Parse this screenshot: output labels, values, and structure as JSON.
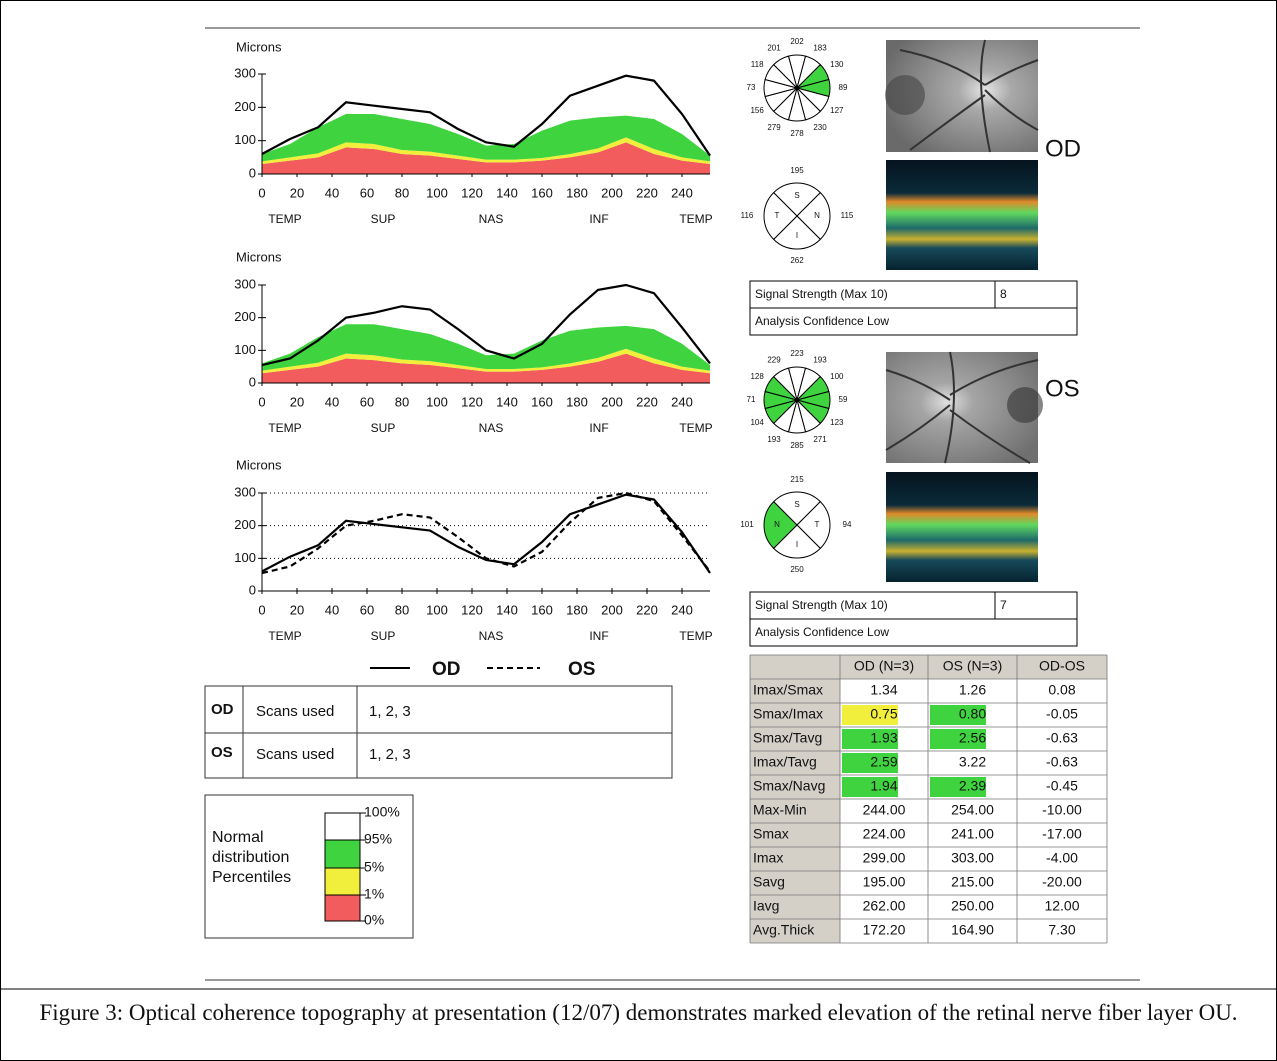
{
  "chart_data": [
    {
      "type": "area",
      "y_label": "Microns",
      "x": [
        0,
        16,
        32,
        48,
        64,
        80,
        96,
        112,
        128,
        144,
        160,
        176,
        192,
        208,
        224,
        240,
        256
      ],
      "xlim": [
        0,
        256
      ],
      "xticks": [
        0,
        20,
        40,
        60,
        80,
        100,
        120,
        140,
        160,
        180,
        200,
        220,
        240
      ],
      "ylim": [
        0,
        300
      ],
      "yticks": [
        0,
        100,
        200,
        300
      ],
      "regions": [
        "TEMP",
        "SUP",
        "NAS",
        "INF",
        "TEMP"
      ],
      "bands": [
        {
          "color": "#f25c5c",
          "values": [
            30,
            40,
            50,
            80,
            75,
            60,
            55,
            45,
            35,
            35,
            40,
            50,
            65,
            95,
            60,
            40,
            30
          ]
        },
        {
          "color": "#f2ee3c",
          "values": [
            8,
            10,
            12,
            15,
            15,
            12,
            12,
            10,
            8,
            8,
            8,
            10,
            12,
            15,
            15,
            10,
            8
          ]
        },
        {
          "color": "#3fd43f",
          "values": [
            22,
            40,
            78,
            85,
            90,
            93,
            83,
            65,
            42,
            47,
            82,
            100,
            93,
            65,
            90,
            70,
            17
          ]
        }
      ],
      "series": [
        {
          "color": "#000000",
          "dash": "solid",
          "values": [
            60,
            105,
            140,
            215,
            205,
            195,
            185,
            135,
            95,
            82,
            150,
            235,
            265,
            295,
            280,
            180,
            55
          ]
        }
      ]
    },
    {
      "type": "area",
      "y_label": "Microns",
      "x": [
        0,
        16,
        32,
        48,
        64,
        80,
        96,
        112,
        128,
        144,
        160,
        176,
        192,
        208,
        224,
        240,
        256
      ],
      "xlim": [
        0,
        256
      ],
      "xticks": [
        0,
        20,
        40,
        60,
        80,
        100,
        120,
        140,
        160,
        180,
        200,
        220,
        240
      ],
      "ylim": [
        0,
        300
      ],
      "yticks": [
        0,
        100,
        200,
        300
      ],
      "regions": [
        "TEMP",
        "SUP",
        "NAS",
        "INF",
        "TEMP"
      ],
      "bands": [
        {
          "color": "#f25c5c",
          "values": [
            30,
            40,
            50,
            75,
            70,
            60,
            55,
            45,
            35,
            35,
            40,
            50,
            65,
            90,
            60,
            40,
            30
          ]
        },
        {
          "color": "#f2ee3c",
          "values": [
            8,
            10,
            12,
            15,
            15,
            12,
            12,
            10,
            8,
            8,
            8,
            10,
            12,
            15,
            15,
            10,
            8
          ]
        },
        {
          "color": "#3fd43f",
          "values": [
            22,
            40,
            78,
            90,
            95,
            93,
            83,
            65,
            42,
            47,
            82,
            100,
            93,
            70,
            90,
            70,
            17
          ]
        }
      ],
      "series": [
        {
          "color": "#000000",
          "dash": "solid",
          "values": [
            55,
            75,
            130,
            200,
            215,
            235,
            225,
            165,
            100,
            75,
            120,
            210,
            285,
            300,
            275,
            170,
            60
          ]
        }
      ]
    },
    {
      "type": "line",
      "y_label": "Microns",
      "x": [
        0,
        16,
        32,
        48,
        64,
        80,
        96,
        112,
        128,
        144,
        160,
        176,
        192,
        208,
        224,
        240,
        256
      ],
      "xlim": [
        0,
        256
      ],
      "xticks": [
        0,
        20,
        40,
        60,
        80,
        100,
        120,
        140,
        160,
        180,
        200,
        220,
        240
      ],
      "ylim": [
        0,
        300
      ],
      "yticks": [
        0,
        100,
        200,
        300
      ],
      "grid": true,
      "regions": [
        "TEMP",
        "SUP",
        "NAS",
        "INF",
        "TEMP"
      ],
      "series": [
        {
          "name": "OD",
          "color": "#000000",
          "dash": "solid",
          "values": [
            60,
            105,
            140,
            215,
            205,
            195,
            185,
            135,
            95,
            82,
            150,
            235,
            265,
            295,
            280,
            180,
            55
          ]
        },
        {
          "name": "OS",
          "color": "#000000",
          "dash": "dashed",
          "values": [
            55,
            75,
            130,
            200,
            215,
            235,
            225,
            165,
            100,
            75,
            120,
            210,
            285,
            300,
            275,
            170,
            60
          ]
        }
      ]
    }
  ],
  "eyes": [
    {
      "label": "OD",
      "clock": {
        "values": [
          202,
          183,
          130,
          89,
          127,
          230,
          278,
          279,
          156,
          73,
          118,
          201
        ],
        "colors": [
          "#ffffff",
          "#ffffff",
          "#3fd43f",
          "#3fd43f",
          "#ffffff",
          "#ffffff",
          "#ffffff",
          "#ffffff",
          "#ffffff",
          "#ffffff",
          "#ffffff",
          "#ffffff"
        ]
      },
      "quadrants": {
        "letters": [
          "S",
          "N",
          "I",
          "T"
        ],
        "values": [
          195,
          115,
          262,
          116
        ],
        "colors": [
          "#ffffff",
          "#ffffff",
          "#ffffff",
          "#ffffff"
        ]
      },
      "signal": {
        "label": "Signal Strength (Max 10)",
        "value": 8,
        "confidence": "Analysis Confidence Low"
      }
    },
    {
      "label": "OS",
      "clock": {
        "values": [
          223,
          193,
          100,
          59,
          123,
          271,
          285,
          193,
          104,
          71,
          128,
          229
        ],
        "colors": [
          "#ffffff",
          "#ffffff",
          "#3fd43f",
          "#3fd43f",
          "#3fd43f",
          "#ffffff",
          "#ffffff",
          "#ffffff",
          "#3fd43f",
          "#3fd43f",
          "#3fd43f",
          "#ffffff"
        ]
      },
      "quadrants": {
        "letters": [
          "S",
          "T",
          "I",
          "N"
        ],
        "values": [
          215,
          94,
          250,
          101
        ],
        "colors": [
          "#ffffff",
          "#ffffff",
          "#ffffff",
          "#3fd43f"
        ]
      },
      "signal": {
        "label": "Signal Strength (Max 10)",
        "value": 7,
        "confidence": "Analysis Confidence Low"
      }
    }
  ],
  "table": {
    "header": [
      "OD (N=3)",
      "OS (N=3)",
      "OD-OS"
    ],
    "rows": [
      {
        "label": "Imax/Smax",
        "cells": [
          "1.34",
          "1.26",
          "0.08"
        ],
        "colors": [
          "#ffffff",
          "#ffffff"
        ]
      },
      {
        "label": "Smax/Imax",
        "cells": [
          "0.75",
          "0.80",
          "-0.05"
        ],
        "colors": [
          "#f2ee3c",
          "#3fd43f"
        ]
      },
      {
        "label": "Smax/Tavg",
        "cells": [
          "1.93",
          "2.56",
          "-0.63"
        ],
        "colors": [
          "#3fd43f",
          "#3fd43f"
        ]
      },
      {
        "label": "Imax/Tavg",
        "cells": [
          "2.59",
          "3.22",
          "-0.63"
        ],
        "colors": [
          "#3fd43f",
          "#ffffff"
        ]
      },
      {
        "label": "Smax/Navg",
        "cells": [
          "1.94",
          "2.39",
          "-0.45"
        ],
        "colors": [
          "#3fd43f",
          "#3fd43f"
        ]
      },
      {
        "label": "Max-Min",
        "cells": [
          "244.00",
          "254.00",
          "-10.00"
        ],
        "colors": [
          "#ffffff",
          "#ffffff"
        ]
      },
      {
        "label": "Smax",
        "cells": [
          "224.00",
          "241.00",
          "-17.00"
        ],
        "colors": [
          "#ffffff",
          "#ffffff"
        ]
      },
      {
        "label": "Imax",
        "cells": [
          "299.00",
          "303.00",
          "-4.00"
        ],
        "colors": [
          "#ffffff",
          "#ffffff"
        ]
      },
      {
        "label": "Savg",
        "cells": [
          "195.00",
          "215.00",
          "-20.00"
        ],
        "colors": [
          "#ffffff",
          "#ffffff"
        ]
      },
      {
        "label": "Iavg",
        "cells": [
          "262.00",
          "250.00",
          "12.00"
        ],
        "colors": [
          "#ffffff",
          "#ffffff"
        ]
      },
      {
        "label": "Avg.Thick",
        "cells": [
          "172.20",
          "164.90",
          "7.30"
        ],
        "colors": [
          "#ffffff",
          "#ffffff"
        ]
      }
    ]
  },
  "scans": [
    {
      "eye": "OD",
      "label": "Scans used",
      "value": "1, 2, 3"
    },
    {
      "eye": "OS",
      "label": "Scans used",
      "value": "1, 2, 3"
    }
  ],
  "percentiles": {
    "title": [
      "Normal",
      "distribution",
      "Percentiles"
    ],
    "ticks": [
      "100%",
      "95%",
      "5%",
      "1%",
      "0%"
    ],
    "colors": [
      "#ffffff",
      "#3fd43f",
      "#f2ee3c",
      "#f25c5c"
    ]
  },
  "caption": "Figure 3: Optical coherence topography at presentation (12/07) demonstrates marked elevation of the retinal nerve fiber layer OU."
}
